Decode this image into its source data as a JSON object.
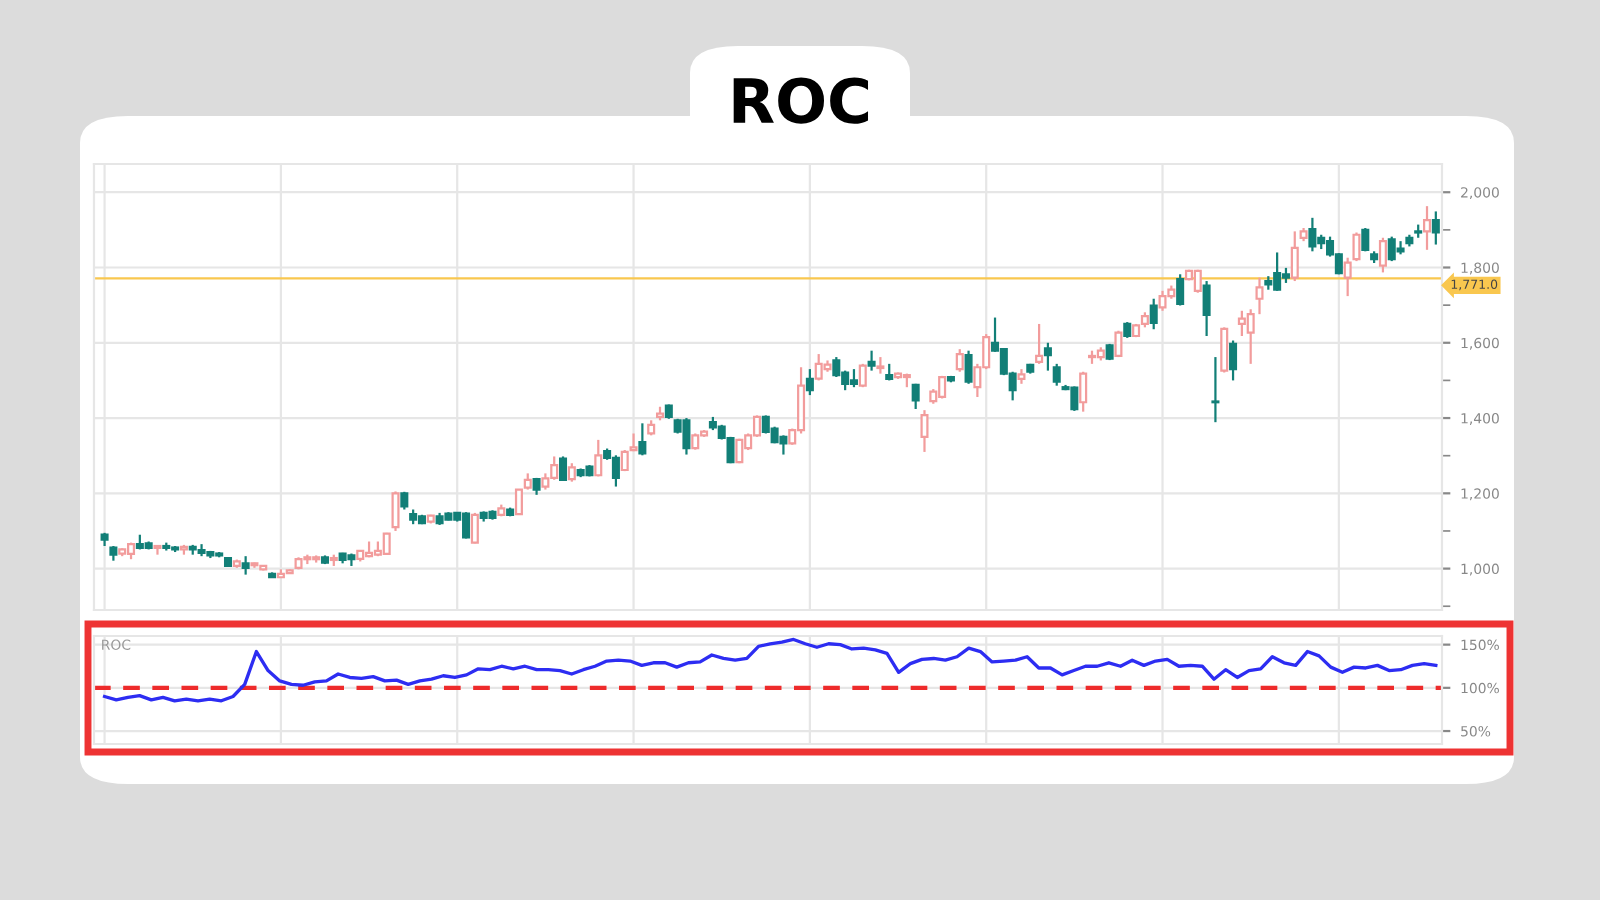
{
  "chart_data": [
    {
      "type": "candlestick",
      "title": "ROC",
      "categories": [
        null,
        null,
        null,
        null,
        null,
        null,
        null,
        null,
        null,
        null,
        null,
        null,
        null,
        null,
        null,
        null,
        null,
        null,
        null,
        null,
        null,
        null,
        null,
        null,
        null,
        null,
        null,
        null,
        null,
        null,
        null,
        null,
        null,
        null,
        null,
        null,
        null,
        null,
        null,
        null,
        null,
        null,
        null,
        null,
        null,
        null,
        null,
        null,
        null,
        null,
        null,
        null,
        null,
        null,
        null,
        null,
        null,
        null,
        null,
        null,
        null,
        null,
        null,
        null,
        null,
        null,
        null,
        null,
        null,
        null,
        null,
        null,
        null,
        null,
        null,
        null,
        null,
        null,
        null,
        null,
        null,
        null,
        null,
        null,
        null,
        null,
        null,
        null,
        null,
        null,
        null,
        null,
        null,
        null,
        null,
        null,
        null,
        null,
        null,
        null,
        null,
        null,
        null,
        null,
        null,
        null,
        null,
        null,
        null,
        null,
        null,
        null,
        null,
        null,
        null,
        null,
        null,
        null,
        null,
        null,
        null,
        null,
        null,
        null,
        null,
        null,
        null,
        null,
        null,
        null,
        null,
        null,
        null,
        null,
        null,
        null,
        null,
        null,
        null,
        null,
        null,
        null,
        null,
        null,
        null,
        null,
        null,
        null,
        null,
        null,
        null,
        null
      ],
      "ohlc": [
        [
          1090,
          1095,
          1060,
          1077
        ],
        [
          1056,
          1060,
          1021,
          1037
        ],
        [
          1040,
          1054,
          1033,
          1051
        ],
        [
          1039,
          1069,
          1025,
          1065
        ],
        [
          1065,
          1090,
          1051,
          1055
        ],
        [
          1067,
          1072,
          1051,
          1055
        ],
        [
          1055,
          1060,
          1037,
          1060
        ],
        [
          1060,
          1069,
          1048,
          1055
        ],
        [
          1056,
          1060,
          1044,
          1051
        ],
        [
          1051,
          1063,
          1037,
          1058
        ],
        [
          1058,
          1063,
          1037,
          1051
        ],
        [
          1049,
          1065,
          1033,
          1042
        ],
        [
          1044,
          1047,
          1028,
          1035
        ],
        [
          1040,
          1044,
          1030,
          1035
        ],
        [
          1028,
          1030,
          1005,
          1007
        ],
        [
          1007,
          1024,
          1002,
          1019
        ],
        [
          1014,
          1033,
          984,
          1002
        ],
        [
          1009,
          1016,
          1002,
          1014
        ],
        [
          998,
          1009,
          995,
          1007
        ],
        [
          986,
          990,
          975,
          977
        ],
        [
          977,
          998,
          975,
          986
        ],
        [
          988,
          998,
          986,
          995
        ],
        [
          1002,
          1030,
          998,
          1025
        ],
        [
          1025,
          1037,
          1012,
          1030
        ],
        [
          1025,
          1035,
          1016,
          1030
        ],
        [
          1030,
          1035,
          1012,
          1016
        ],
        [
          1023,
          1037,
          1007,
          1028
        ],
        [
          1040,
          1042,
          1014,
          1023
        ],
        [
          1035,
          1040,
          1007,
          1025
        ],
        [
          1026,
          1049,
          1019,
          1047
        ],
        [
          1033,
          1072,
          1030,
          1042
        ],
        [
          1037,
          1072,
          1033,
          1047
        ],
        [
          1039,
          1095,
          1037,
          1093
        ],
        [
          1110,
          1205,
          1100,
          1200
        ],
        [
          1200,
          1204,
          1157,
          1165
        ],
        [
          1145,
          1157,
          1118,
          1130
        ],
        [
          1139,
          1143,
          1118,
          1121
        ],
        [
          1125,
          1143,
          1120,
          1141
        ],
        [
          1139,
          1148,
          1116,
          1121
        ],
        [
          1146,
          1150,
          1128,
          1130
        ],
        [
          1148,
          1150,
          1125,
          1130
        ],
        [
          1146,
          1150,
          1080,
          1083
        ],
        [
          1069,
          1148,
          1067,
          1143
        ],
        [
          1148,
          1152,
          1125,
          1135
        ],
        [
          1151,
          1155,
          1130,
          1135
        ],
        [
          1143,
          1170,
          1139,
          1160
        ],
        [
          1157,
          1162,
          1139,
          1143
        ],
        [
          1145,
          1210,
          1143,
          1210
        ],
        [
          1215,
          1253,
          1210,
          1236
        ],
        [
          1238,
          1241,
          1196,
          1210
        ],
        [
          1218,
          1253,
          1210,
          1240
        ],
        [
          1241,
          1298,
          1236,
          1275
        ],
        [
          1292,
          1298,
          1234,
          1236
        ],
        [
          1238,
          1280,
          1231,
          1269
        ],
        [
          1262,
          1266,
          1243,
          1248
        ],
        [
          1271,
          1275,
          1245,
          1248
        ],
        [
          1248,
          1342,
          1245,
          1301
        ],
        [
          1312,
          1319,
          1289,
          1294
        ],
        [
          1294,
          1301,
          1218,
          1241
        ],
        [
          1262,
          1315,
          1259,
          1310
        ],
        [
          1315,
          1359,
          1312,
          1322
        ],
        [
          1336,
          1386,
          1301,
          1306
        ],
        [
          1359,
          1394,
          1354,
          1382
        ],
        [
          1403,
          1430,
          1394,
          1412
        ],
        [
          1433,
          1436,
          1398,
          1403
        ],
        [
          1394,
          1398,
          1359,
          1364
        ],
        [
          1394,
          1400,
          1303,
          1320
        ],
        [
          1320,
          1359,
          1316,
          1354
        ],
        [
          1354,
          1368,
          1350,
          1364
        ],
        [
          1389,
          1403,
          1368,
          1375
        ],
        [
          1377,
          1382,
          1343,
          1347
        ],
        [
          1347,
          1350,
          1280,
          1283
        ],
        [
          1283,
          1345,
          1280,
          1342
        ],
        [
          1320,
          1359,
          1315,
          1354
        ],
        [
          1354,
          1407,
          1350,
          1403
        ],
        [
          1403,
          1407,
          1359,
          1363
        ],
        [
          1372,
          1377,
          1333,
          1336
        ],
        [
          1350,
          1354,
          1303,
          1333
        ],
        [
          1333,
          1372,
          1329,
          1368
        ],
        [
          1368,
          1535,
          1359,
          1486
        ],
        [
          1504,
          1530,
          1461,
          1474
        ],
        [
          1505,
          1570,
          1500,
          1544
        ],
        [
          1530,
          1553,
          1523,
          1542
        ],
        [
          1553,
          1562,
          1509,
          1514
        ],
        [
          1521,
          1526,
          1474,
          1491
        ],
        [
          1500,
          1530,
          1482,
          1491
        ],
        [
          1486,
          1544,
          1482,
          1539
        ],
        [
          1549,
          1579,
          1526,
          1539
        ],
        [
          1533,
          1562,
          1518,
          1537
        ],
        [
          1514,
          1544,
          1500,
          1504
        ],
        [
          1509,
          1521,
          1504,
          1518
        ],
        [
          1509,
          1518,
          1482,
          1514
        ],
        [
          1488,
          1491,
          1424,
          1447
        ],
        [
          1350,
          1421,
          1310,
          1408
        ],
        [
          1445,
          1477,
          1438,
          1470
        ],
        [
          1456,
          1512,
          1452,
          1509
        ],
        [
          1509,
          1512,
          1495,
          1500
        ],
        [
          1530,
          1583,
          1523,
          1570
        ],
        [
          1567,
          1579,
          1491,
          1497
        ],
        [
          1482,
          1544,
          1456,
          1535
        ],
        [
          1535,
          1623,
          1530,
          1615
        ],
        [
          1600,
          1667,
          1576,
          1579
        ],
        [
          1583,
          1586,
          1514,
          1518
        ],
        [
          1518,
          1523,
          1447,
          1474
        ],
        [
          1504,
          1530,
          1491,
          1516
        ],
        [
          1541,
          1544,
          1518,
          1523
        ],
        [
          1549,
          1650,
          1544,
          1565
        ],
        [
          1585,
          1600,
          1526,
          1567
        ],
        [
          1535,
          1544,
          1486,
          1497
        ],
        [
          1482,
          1488,
          1474,
          1477
        ],
        [
          1481,
          1484,
          1419,
          1424
        ],
        [
          1442,
          1523,
          1417,
          1518
        ],
        [
          1562,
          1579,
          1544,
          1565
        ],
        [
          1562,
          1588,
          1553,
          1579
        ],
        [
          1593,
          1597,
          1554,
          1558
        ],
        [
          1565,
          1632,
          1562,
          1627
        ],
        [
          1650,
          1655,
          1613,
          1618
        ],
        [
          1618,
          1650,
          1615,
          1646
        ],
        [
          1650,
          1681,
          1641,
          1671
        ],
        [
          1699,
          1717,
          1636,
          1653
        ],
        [
          1694,
          1738,
          1685,
          1724
        ],
        [
          1724,
          1752,
          1717,
          1741
        ],
        [
          1769,
          1782,
          1699,
          1703
        ],
        [
          1769,
          1794,
          1766,
          1791
        ],
        [
          1738,
          1794,
          1733,
          1791
        ],
        [
          1752,
          1764,
          1618,
          1674
        ],
        [
          1444,
          1562,
          1389,
          1442
        ],
        [
          1526,
          1641,
          1521,
          1637
        ],
        [
          1597,
          1606,
          1500,
          1530
        ],
        [
          1650,
          1685,
          1618,
          1664
        ],
        [
          1627,
          1689,
          1544,
          1676
        ],
        [
          1717,
          1773,
          1676,
          1747
        ],
        [
          1764,
          1777,
          1741,
          1755
        ],
        [
          1785,
          1840,
          1738,
          1741
        ],
        [
          1782,
          1799,
          1759,
          1773
        ],
        [
          1773,
          1896,
          1764,
          1852
        ],
        [
          1879,
          1905,
          1870,
          1896
        ],
        [
          1902,
          1932,
          1843,
          1856
        ],
        [
          1879,
          1887,
          1849,
          1865
        ],
        [
          1870,
          1882,
          1829,
          1835
        ],
        [
          1835,
          1838,
          1782,
          1785
        ],
        [
          1773,
          1826,
          1724,
          1813
        ],
        [
          1822,
          1893,
          1817,
          1887
        ],
        [
          1900,
          1905,
          1843,
          1847
        ],
        [
          1835,
          1843,
          1812,
          1822
        ],
        [
          1805,
          1879,
          1787,
          1870
        ],
        [
          1875,
          1882,
          1817,
          1822
        ],
        [
          1850,
          1870,
          1835,
          1843
        ],
        [
          1879,
          1887,
          1856,
          1865
        ],
        [
          1896,
          1914,
          1879,
          1893
        ],
        [
          1896,
          1963,
          1847,
          1926
        ],
        [
          1926,
          1949,
          1861,
          1893
        ]
      ],
      "colors": [
        "#127f77",
        "#127f77",
        "#f29c9c",
        "#f29c9c",
        "#127f77",
        "#127f77",
        "#f29c9c",
        "#127f77",
        "#127f77",
        "#f29c9c",
        "#127f77",
        "#127f77",
        "#127f77",
        "#127f77",
        "#127f77",
        "#f29c9c",
        "#127f77",
        "#f29c9c",
        "#f29c9c",
        "#127f77",
        "#f29c9c",
        "#f29c9c",
        "#f29c9c",
        "#f29c9c",
        "#f29c9c",
        "#127f77",
        "#f29c9c",
        "#127f77",
        "#127f77",
        "#f29c9c",
        "#f29c9c",
        "#f29c9c",
        "#f29c9c",
        "#f29c9c",
        "#127f77",
        "#127f77",
        "#127f77",
        "#f29c9c",
        "#127f77",
        "#127f77",
        "#127f77",
        "#127f77",
        "#f29c9c",
        "#127f77",
        "#127f77",
        "#f29c9c",
        "#127f77",
        "#f29c9c",
        "#f29c9c",
        "#127f77",
        "#f29c9c",
        "#f29c9c",
        "#127f77",
        "#f29c9c",
        "#127f77",
        "#127f77",
        "#f29c9c",
        "#127f77",
        "#127f77",
        "#f29c9c",
        "#f29c9c",
        "#127f77",
        "#f29c9c",
        "#f29c9c",
        "#127f77",
        "#127f77",
        "#127f77",
        "#f29c9c",
        "#f29c9c",
        "#127f77",
        "#127f77",
        "#127f77",
        "#f29c9c",
        "#f29c9c",
        "#f29c9c",
        "#127f77",
        "#127f77",
        "#127f77",
        "#f29c9c",
        "#f29c9c",
        "#127f77",
        "#f29c9c",
        "#f29c9c",
        "#127f77",
        "#127f77",
        "#127f77",
        "#f29c9c",
        "#127f77",
        "#f29c9c",
        "#127f77",
        "#f29c9c",
        "#f29c9c",
        "#127f77",
        "#f29c9c",
        "#f29c9c",
        "#f29c9c",
        "#127f77",
        "#f29c9c",
        "#127f77",
        "#f29c9c",
        "#f29c9c",
        "#127f77",
        "#127f77",
        "#127f77",
        "#f29c9c",
        "#127f77",
        "#f29c9c",
        "#127f77",
        "#127f77",
        "#127f77",
        "#127f77",
        "#f29c9c",
        "#f29c9c",
        "#f29c9c",
        "#127f77",
        "#f29c9c",
        "#127f77",
        "#f29c9c",
        "#f29c9c",
        "#127f77",
        "#f29c9c",
        "#f29c9c",
        "#127f77",
        "#f29c9c",
        "#f29c9c",
        "#127f77",
        "#127f77",
        "#f29c9c",
        "#127f77",
        "#f29c9c",
        "#f29c9c",
        "#f29c9c",
        "#127f77",
        "#127f77",
        "#127f77",
        "#f29c9c",
        "#f29c9c",
        "#127f77",
        "#127f77",
        "#127f77",
        "#127f77",
        "#f29c9c",
        "#f29c9c",
        "#127f77",
        "#127f77",
        "#f29c9c",
        "#127f77",
        "#127f77",
        "#127f77",
        "#127f77",
        "#f29c9c",
        "#127f77"
      ],
      "ylim": [
        890,
        2075
      ],
      "yticks": [
        {
          "value": 900,
          "label": null
        },
        {
          "value": 1000,
          "label": "1,000"
        },
        {
          "value": 1100,
          "label": null
        },
        {
          "value": 1200,
          "label": "1,200"
        },
        {
          "value": 1300,
          "label": null
        },
        {
          "value": 1400,
          "label": "1,400"
        },
        {
          "value": 1500,
          "label": null
        },
        {
          "value": 1600,
          "label": "1,600"
        },
        {
          "value": 1700,
          "label": null
        },
        {
          "value": 1800,
          "label": "1,800"
        },
        {
          "value": 1900,
          "label": null
        },
        {
          "value": 2000,
          "label": "2,000"
        }
      ],
      "grid": true,
      "tick_labels": "y",
      "ref_lines": [
        {
          "axis": "y",
          "value": 1771,
          "label": "1,771.0",
          "color": "#f9c74f"
        }
      ]
    },
    {
      "type": "line",
      "title": "ROC",
      "categories": [
        null,
        null,
        null,
        null,
        null,
        null,
        null,
        null,
        null,
        null,
        null,
        null,
        null,
        null,
        null,
        null,
        null,
        null,
        null,
        null,
        null,
        null,
        null,
        null,
        null,
        null,
        null,
        null,
        null,
        null,
        null,
        null,
        null,
        null,
        null,
        null,
        null,
        null,
        null,
        null,
        null,
        null,
        null,
        null,
        null,
        null,
        null,
        null,
        null,
        null,
        null,
        null,
        null,
        null,
        null,
        null,
        null,
        null,
        null,
        null,
        null,
        null,
        null,
        null,
        null,
        null,
        null,
        null,
        null,
        null,
        null,
        null,
        null,
        null,
        null,
        null,
        null,
        null,
        null,
        null,
        null,
        null,
        null,
        null,
        null,
        null,
        null,
        null,
        null,
        null,
        null,
        null,
        null,
        null,
        null,
        null,
        null,
        null,
        null,
        null,
        null,
        null,
        null,
        null,
        null,
        null,
        null,
        null,
        null,
        null,
        null,
        null,
        null,
        null,
        null
      ],
      "series": [
        {
          "color": "#2d2df2",
          "values": [
            90,
            86,
            89,
            91,
            86,
            89,
            85,
            87,
            85,
            87,
            85,
            90,
            104,
            142,
            120,
            108,
            104,
            103,
            107,
            108,
            116,
            112,
            111,
            113,
            108,
            109,
            104,
            108,
            110,
            114,
            112,
            115,
            122,
            121,
            125,
            122,
            125,
            121,
            121,
            120,
            116,
            121,
            125,
            131,
            132,
            131,
            126,
            129,
            129,
            124,
            129,
            130,
            138,
            134,
            132,
            134,
            148,
            151,
            153,
            156,
            151,
            147,
            151,
            150,
            145,
            146,
            144,
            140,
            118,
            128,
            133,
            134,
            132,
            136,
            146,
            142,
            130,
            131,
            132,
            136,
            123,
            123,
            115,
            120,
            125,
            125,
            129,
            125,
            132,
            126,
            131,
            133,
            125,
            126,
            125,
            110,
            121,
            112,
            120,
            122,
            136,
            129,
            126,
            142,
            137,
            124,
            118,
            124,
            123,
            126,
            120,
            121,
            126,
            128,
            126
          ]
        }
      ],
      "ylim": [
        35,
        160
      ],
      "yticks": [
        {
          "value": 50,
          "label": "50%"
        },
        {
          "value": 100,
          "label": "100%"
        },
        {
          "value": 150,
          "label": "150%"
        }
      ],
      "grid": true,
      "tick_labels": "y",
      "ref_lines": [
        {
          "axis": "y",
          "value": 100,
          "color": "#ee2b2b",
          "line_style": "dashed"
        }
      ]
    }
  ]
}
